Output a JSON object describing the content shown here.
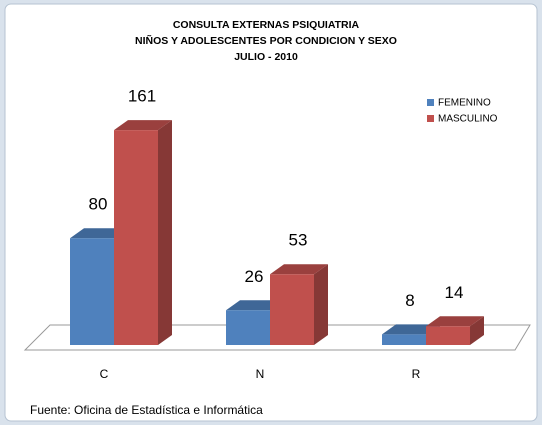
{
  "chart_data": {
    "type": "bar3d",
    "title": "CONSULTA EXTERNAS PSIQUIATRIA",
    "subtitle": [
      "NIÑOS Y ADOLESCENTES POR CONDICION Y SEXO",
      "JULIO - 2010"
    ],
    "categories": [
      "C",
      "N",
      "R"
    ],
    "series": [
      {
        "name": "FEMENINO",
        "color": "#4f81bd",
        "values": [
          80,
          26,
          8
        ]
      },
      {
        "name": "MASCULINO",
        "color": "#c0504d",
        "values": [
          161,
          53,
          14
        ]
      }
    ],
    "legend": "top-right",
    "source": "Fuente: Oficina de Estadística e Informática"
  }
}
